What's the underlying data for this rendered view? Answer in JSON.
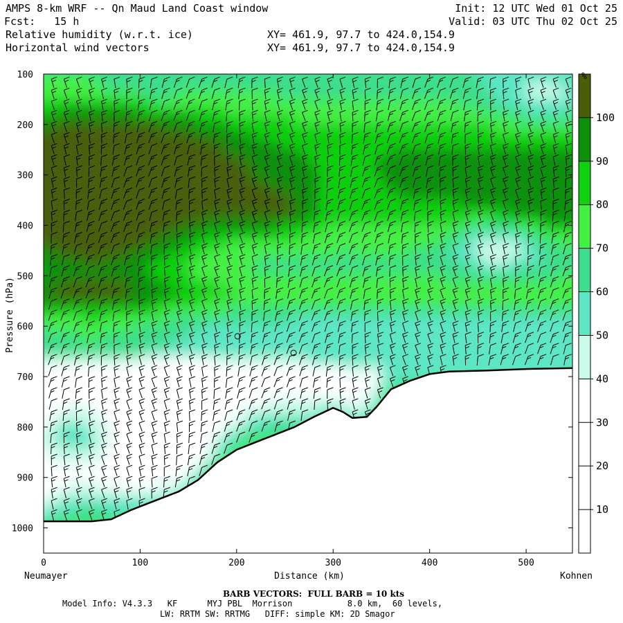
{
  "header": {
    "title": "AMPS 8-km WRF -- Qn Maud Land Coast window",
    "fcst": "Fcst:   15 h",
    "init": "Init: 12 UTC Wed 01 Oct 25",
    "valid": "Valid: 03 UTC Thu 02 Oct 25",
    "field1": "Relative humidity (w.r.t. ice)",
    "field2": "Horizontal wind vectors",
    "xy1": "XY= 461.9, 97.7 to 424.0,154.9",
    "xy2": "XY= 461.9, 97.7 to 424.0,154.9"
  },
  "footer": {
    "barb_note": "BARB VECTORS:  FULL BARB = 10 kts",
    "line1": "Model Info: V4.3.3   KF      MYJ PBL  Morrison           8.0 km,  60 levels,",
    "line2": "LW: RRTM SW: RRTMG   DIFF: simple KM: 2D Smagor"
  },
  "chart_data": {
    "type": "heatmap",
    "title": "Relative humidity (w.r.t. ice)",
    "xlabel": "Distance (km)",
    "ylabel": "Pressure (hPa)",
    "x_left_label": "Neumayer",
    "x_right_label": "Kohnen",
    "xlim": [
      0,
      548
    ],
    "ylim": [
      1050,
      100
    ],
    "x_ticks": [
      0,
      100,
      200,
      300,
      400,
      500
    ],
    "y_ticks": [
      100,
      200,
      300,
      400,
      500,
      600,
      700,
      800,
      900,
      1000
    ],
    "colorbar": {
      "unit": "%",
      "levels": [
        10,
        20,
        30,
        40,
        50,
        60,
        70,
        80,
        90,
        100
      ],
      "colors": [
        "#ffffff",
        "#ffffff",
        "#ffffff",
        "#cafae8",
        "#5ce6c4",
        "#3cde8c",
        "#44f044",
        "#10d010",
        "#0c900c",
        "#4a5e0a"
      ]
    },
    "terrain": [
      [
        0,
        987
      ],
      [
        30,
        987
      ],
      [
        50,
        987
      ],
      [
        70,
        983
      ],
      [
        90,
        965
      ],
      [
        110,
        950
      ],
      [
        140,
        928
      ],
      [
        160,
        905
      ],
      [
        180,
        870
      ],
      [
        200,
        845
      ],
      [
        220,
        830
      ],
      [
        240,
        815
      ],
      [
        260,
        800
      ],
      [
        280,
        780
      ],
      [
        300,
        762
      ],
      [
        310,
        770
      ],
      [
        320,
        782
      ],
      [
        335,
        780
      ],
      [
        345,
        760
      ],
      [
        360,
        725
      ],
      [
        380,
        708
      ],
      [
        400,
        695
      ],
      [
        420,
        690
      ],
      [
        460,
        688
      ],
      [
        500,
        685
      ],
      [
        548,
        683
      ]
    ],
    "circle_markers": [
      [
        201,
        620
      ],
      [
        259,
        653
      ]
    ]
  }
}
